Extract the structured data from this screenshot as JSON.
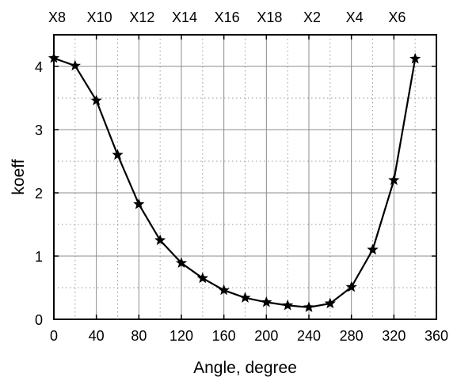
{
  "chart_data": {
    "type": "line",
    "title": "",
    "xlabel": "Angle, degree",
    "ylabel": "koeff",
    "xlim": [
      0,
      360
    ],
    "ylim": [
      0,
      4.5
    ],
    "x_ticks": [
      0,
      40,
      80,
      120,
      160,
      200,
      240,
      280,
      320,
      360
    ],
    "y_ticks": [
      0,
      1,
      2,
      3,
      4
    ],
    "x_minor_ticks": [
      20,
      60,
      100,
      140,
      180,
      220,
      260,
      300,
      340
    ],
    "y_minor_ticks": [
      0.5,
      1.5,
      2.5,
      3.5
    ],
    "top_labels": [
      {
        "x": 0,
        "text": "X8"
      },
      {
        "x": 40,
        "text": "X10"
      },
      {
        "x": 80,
        "text": "X12"
      },
      {
        "x": 120,
        "text": "X14"
      },
      {
        "x": 160,
        "text": "X16"
      },
      {
        "x": 200,
        "text": "X18"
      },
      {
        "x": 240,
        "text": "X2"
      },
      {
        "x": 280,
        "text": "X4"
      },
      {
        "x": 320,
        "text": "X6"
      }
    ],
    "grid": true,
    "marker": "star",
    "line_color": "#000000",
    "series": [
      {
        "x": [
          0,
          20,
          40,
          60,
          80,
          100,
          120,
          140,
          160,
          180,
          200,
          220,
          240,
          260,
          280,
          300,
          320,
          340
        ],
        "y": [
          4.13,
          4.01,
          3.46,
          2.6,
          1.82,
          1.25,
          0.89,
          0.65,
          0.46,
          0.34,
          0.27,
          0.22,
          0.19,
          0.25,
          0.51,
          1.1,
          2.2,
          4.12
        ]
      }
    ]
  }
}
